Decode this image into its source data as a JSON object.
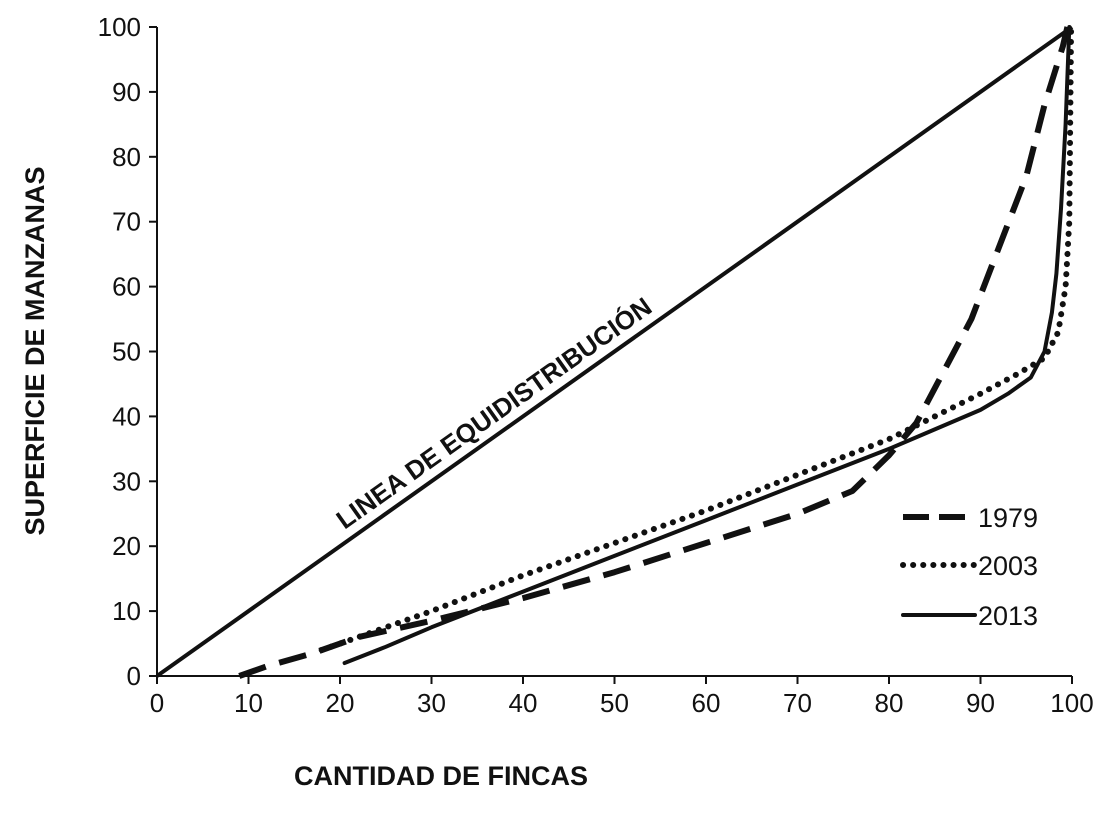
{
  "chart_data": {
    "type": "line",
    "xlabel": "CANTIDAD DE FINCAS",
    "ylabel": "SUPERFICIE DE MANZANAS",
    "xlim": [
      0,
      100
    ],
    "ylim": [
      0,
      100
    ],
    "xticks": [
      0,
      10,
      20,
      30,
      40,
      50,
      60,
      70,
      80,
      90,
      100
    ],
    "yticks": [
      0,
      10,
      20,
      30,
      40,
      50,
      60,
      70,
      80,
      90,
      100
    ],
    "grid": false,
    "legend_position": "bottom-right",
    "annotation": "LINEA DE EQUIDISTRIBUCIÓN",
    "equidistribution_line": {
      "x": [
        0,
        100
      ],
      "y": [
        0,
        100
      ]
    },
    "series": [
      {
        "name": "1979",
        "style": "dashed",
        "x": [
          9,
          12,
          17,
          22,
          30,
          40,
          50,
          60,
          70,
          76,
          80,
          83,
          86,
          89,
          92,
          95,
          97,
          99,
          99.5
        ],
        "y": [
          0,
          1.5,
          3.5,
          6,
          8.5,
          12,
          16,
          20.5,
          25,
          28.5,
          34,
          39,
          47,
          55,
          66,
          77,
          88,
          97,
          100
        ]
      },
      {
        "name": "2003",
        "style": "dotted",
        "x": [
          18,
          22,
          30,
          40,
          50,
          60,
          70,
          80,
          85,
          90,
          94,
          97,
          98.5,
          99.3,
          99.7,
          99.9
        ],
        "y": [
          4,
          6,
          10,
          15.5,
          20.5,
          25.5,
          31,
          36.5,
          40,
          43.5,
          46.5,
          49,
          53,
          60,
          70,
          100
        ]
      },
      {
        "name": "2013",
        "style": "solid",
        "x": [
          20.5,
          25,
          30,
          40,
          50,
          60,
          70,
          80,
          85,
          90,
          93,
          95.5,
          97,
          97.8,
          98.3,
          98.8,
          99.3,
          99.7
        ],
        "y": [
          2,
          4.5,
          7.5,
          13,
          18.5,
          24,
          29.5,
          35,
          38,
          41,
          43.5,
          46,
          50,
          56,
          62,
          72,
          85,
          100
        ]
      }
    ]
  },
  "colors": {
    "line": "#111111",
    "background": "#ffffff"
  }
}
